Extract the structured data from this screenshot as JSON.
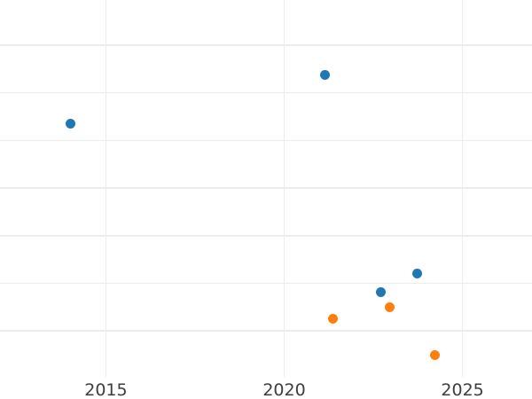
{
  "chart_data": {
    "type": "scatter",
    "title": "",
    "xlabel": "",
    "ylabel": "",
    "grid": true,
    "legend": "none",
    "x_tick_labels": [
      "2015",
      "2020",
      "2025"
    ],
    "x_tick_values": [
      2015,
      2020,
      2025
    ],
    "x_domain": [
      2012.03,
      2026.95
    ],
    "y_domain": [
      -0.43,
      7.95
    ],
    "y_gridline_values": [
      1,
      2,
      3,
      4,
      5,
      6,
      7
    ],
    "y_axis_note": "y tick labels not visible (cropped); y values expressed in gridline units",
    "marker_diameter_px": 11,
    "series": [
      {
        "name": "blue-series",
        "color": "#1f77b4",
        "points": [
          {
            "x": 2014.0,
            "y": 5.36
          },
          {
            "x": 2021.15,
            "y": 6.37
          },
          {
            "x": 2022.7,
            "y": 1.81
          },
          {
            "x": 2023.74,
            "y": 2.2
          },
          {
            "x": 2021.36,
            "y": 1.25,
            "_series_override": null
          }
        ]
      },
      {
        "name": "orange-series",
        "color": "#ff7f0e",
        "points": [
          {
            "x": 2021.36,
            "y": 1.25
          },
          {
            "x": 2022.95,
            "y": 1.49
          },
          {
            "x": 2024.23,
            "y": 0.49
          }
        ]
      }
    ],
    "style": {
      "background": "#ffffff",
      "gridline_color": "#ececec",
      "tick_label_color": "#3d3d3d"
    }
  }
}
